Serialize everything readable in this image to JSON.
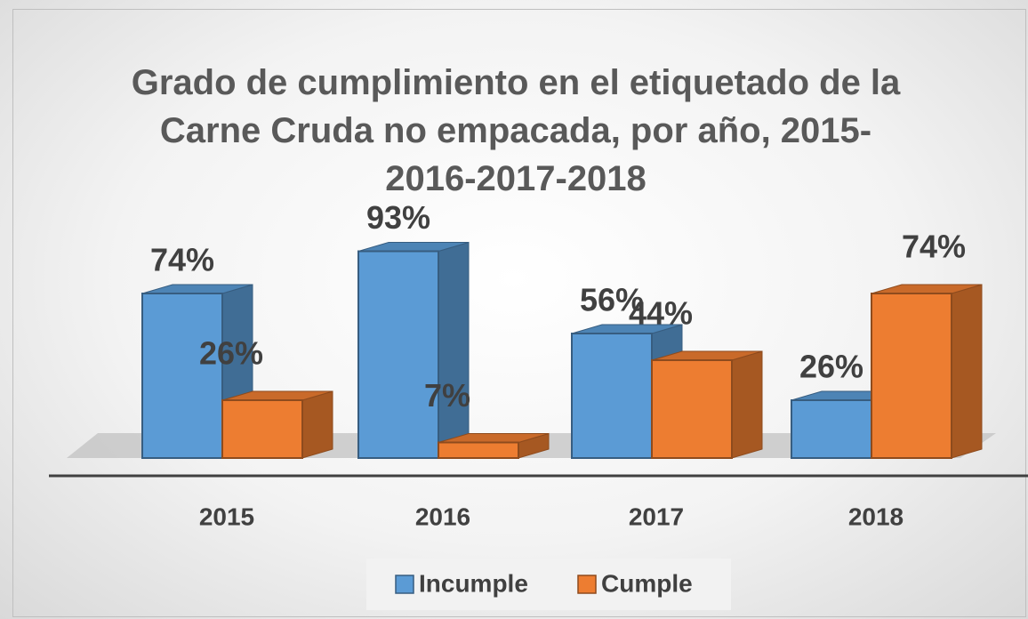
{
  "chart_data": {
    "type": "bar3d",
    "title": "Grado de cumplimiento en el etiquetado de la Carne Cruda no empacada, por año, 2015-2016-2017-2018",
    "categories": [
      "2015",
      "2016",
      "2017",
      "2018"
    ],
    "series": [
      {
        "name": "Incumple",
        "color": "#5b9bd5",
        "values": [
          74,
          93,
          56,
          26
        ],
        "value_labels": [
          "74%",
          "93%",
          "56%",
          "26%"
        ]
      },
      {
        "name": "Cumple",
        "color": "#ed7d31",
        "values": [
          26,
          7,
          44,
          74
        ],
        "value_labels": [
          "26%",
          "7%",
          "44%",
          "74%"
        ]
      }
    ],
    "ylim": [
      0,
      100
    ]
  }
}
